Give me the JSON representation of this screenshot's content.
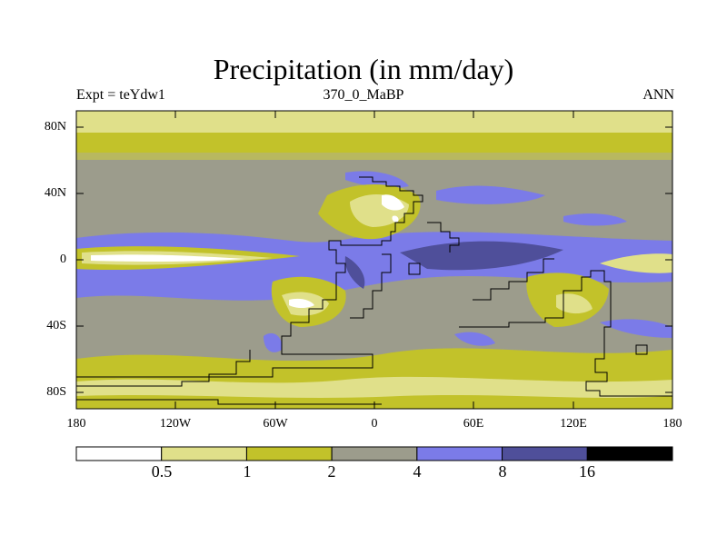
{
  "title": "Precipitation (in mm/day)",
  "subtitle": {
    "left": "Expt = teYdw1",
    "center": "370_0_MaBP",
    "right": "ANN"
  },
  "axes": {
    "lat_ticks": [
      "80N",
      "40N",
      "0",
      "40S",
      "80S"
    ],
    "lon_ticks": [
      "180",
      "120W",
      "60W",
      "0",
      "60E",
      "120E",
      "180"
    ]
  },
  "colorbar": {
    "labels": [
      "0.5",
      "1",
      "2",
      "4",
      "8",
      "16"
    ],
    "colors": [
      "#ffffff",
      "#e0e08a",
      "#c2c22a",
      "#9c9c8c",
      "#7b7be8",
      "#4f4f9a",
      "#000000"
    ]
  }
}
